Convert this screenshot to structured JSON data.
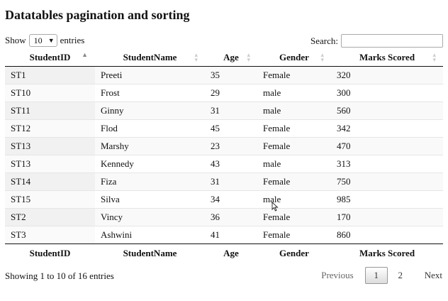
{
  "page": {
    "title": "Datatables pagination and sorting"
  },
  "length": {
    "show_label": "Show",
    "selected": "10",
    "entries_label": "entries"
  },
  "search": {
    "label": "Search:",
    "value": ""
  },
  "table": {
    "headers": [
      "StudentID",
      "StudentName",
      "Age",
      "Gender",
      "Marks Scored"
    ],
    "sorted_column": "StudentID",
    "sort_direction": "ascending",
    "rows": [
      [
        "ST1",
        "Preeti",
        "35",
        "Female",
        "320"
      ],
      [
        "ST10",
        "Frost",
        "29",
        "male",
        "300"
      ],
      [
        "ST11",
        "Ginny",
        "31",
        "male",
        "560"
      ],
      [
        "ST12",
        "Flod",
        "45",
        "Female",
        "342"
      ],
      [
        "ST13",
        "Marshy",
        "23",
        "Female",
        "470"
      ],
      [
        "ST13",
        "Kennedy",
        "43",
        "male",
        "313"
      ],
      [
        "ST14",
        "Fiza",
        "31",
        "Female",
        "750"
      ],
      [
        "ST15",
        "Silva",
        "34",
        "male",
        "985"
      ],
      [
        "ST2",
        "Vincy",
        "36",
        "Female",
        "170"
      ],
      [
        "ST3",
        "Ashwini",
        "41",
        "Female",
        "860"
      ]
    ],
    "footers": [
      "StudentID",
      "StudentName",
      "Age",
      "Gender",
      "Marks Scored"
    ]
  },
  "info": "Showing 1 to 10 of 16 entries",
  "pagination": {
    "previous": "Previous",
    "pages": [
      "1",
      "2"
    ],
    "current": "1",
    "next": "Next"
  },
  "icons": {
    "sort": "sort-arrows-icon",
    "dropdown": "chevron-down-icon",
    "cursor": "mouse-pointer-icon"
  }
}
